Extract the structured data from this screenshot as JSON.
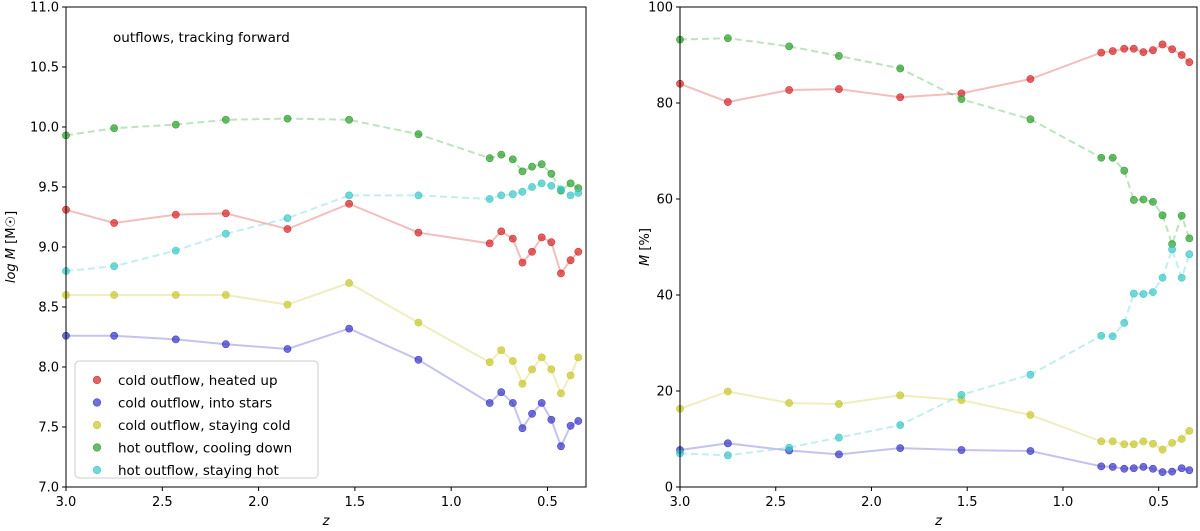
{
  "chart_data": [
    {
      "type": "line",
      "annotation": "outflows, tracking forward",
      "xlabel": "z",
      "ylabel_main": "log M",
      "ylabel_unit": "[M☉]",
      "xlim": [
        3.0,
        0.3
      ],
      "ylim": [
        7.0,
        11.0
      ],
      "xticks": [
        3.0,
        2.5,
        2.0,
        1.5,
        1.0,
        0.5
      ],
      "xtick_labels": [
        "3.0",
        "2.5",
        "2.0",
        "1.5",
        "1.0",
        "0.5"
      ],
      "yticks": [
        7.0,
        7.5,
        8.0,
        8.5,
        9.0,
        9.5,
        10.0,
        10.5,
        11.0
      ],
      "ytick_labels": [
        "7.0",
        "7.5",
        "8.0",
        "8.5",
        "9.0",
        "9.5",
        "10.0",
        "10.5",
        "11.0"
      ],
      "legend_position": "lower-left",
      "x": [
        3.0,
        2.75,
        2.43,
        2.17,
        1.85,
        1.53,
        1.17,
        0.8,
        0.74,
        0.68,
        0.63,
        0.58,
        0.53,
        0.48,
        0.43,
        0.38,
        0.34
      ],
      "series": [
        {
          "name": "cold outflow, heated up",
          "color": "#d62728",
          "dashed": false,
          "values": [
            9.31,
            9.2,
            9.27,
            9.28,
            9.15,
            9.36,
            9.12,
            9.03,
            9.13,
            9.07,
            8.87,
            8.96,
            9.08,
            9.04,
            8.78,
            8.89,
            8.96
          ]
        },
        {
          "name": "cold outflow, into stars",
          "color": "#3b38c7",
          "dashed": false,
          "values": [
            8.26,
            8.26,
            8.23,
            8.19,
            8.15,
            8.32,
            8.06,
            7.7,
            7.79,
            7.7,
            7.49,
            7.61,
            7.7,
            7.56,
            7.34,
            7.51,
            7.55
          ]
        },
        {
          "name": "cold outflow, staying cold",
          "color": "#c8c82e",
          "dashed": false,
          "values": [
            8.6,
            8.6,
            8.6,
            8.6,
            8.52,
            8.7,
            8.37,
            8.04,
            8.14,
            8.05,
            7.86,
            7.98,
            8.08,
            7.98,
            7.78,
            7.93,
            8.08
          ]
        },
        {
          "name": "hot outflow, cooling down",
          "color": "#2ca02c",
          "dashed": true,
          "values": [
            9.93,
            9.99,
            10.02,
            10.06,
            10.07,
            10.06,
            9.94,
            9.74,
            9.77,
            9.73,
            9.63,
            9.67,
            9.69,
            9.61,
            9.47,
            9.53,
            9.49
          ]
        },
        {
          "name": "hot outflow, staying hot",
          "color": "#3cc8c8",
          "dashed": true,
          "values": [
            8.8,
            8.84,
            8.97,
            9.11,
            9.24,
            9.43,
            9.43,
            9.4,
            9.43,
            9.44,
            9.46,
            9.5,
            9.53,
            9.51,
            9.48,
            9.43,
            9.45
          ]
        }
      ]
    },
    {
      "type": "line",
      "xlabel": "z",
      "ylabel_main": "M",
      "ylabel_unit": "[%]",
      "xlim": [
        3.0,
        0.3
      ],
      "ylim": [
        0,
        100
      ],
      "xticks": [
        3.0,
        2.5,
        2.0,
        1.5,
        1.0,
        0.5
      ],
      "xtick_labels": [
        "3.0",
        "2.5",
        "2.0",
        "1.5",
        "1.0",
        "0.5"
      ],
      "yticks": [
        0,
        20,
        40,
        60,
        80,
        100
      ],
      "ytick_labels": [
        "0",
        "20",
        "40",
        "60",
        "80",
        "100"
      ],
      "x": [
        3.0,
        2.75,
        2.43,
        2.17,
        1.85,
        1.53,
        1.17,
        0.8,
        0.74,
        0.68,
        0.63,
        0.58,
        0.53,
        0.48,
        0.43,
        0.38,
        0.34
      ],
      "series": [
        {
          "name": "cold outflow, heated up",
          "color": "#d62728",
          "dashed": false,
          "values": [
            84,
            80.2,
            82.7,
            82.9,
            81.2,
            82,
            85,
            90.5,
            90.8,
            91.3,
            91.3,
            90.6,
            91,
            92.2,
            91.2,
            90,
            88.5
          ]
        },
        {
          "name": "cold outflow, into stars",
          "color": "#3b38c7",
          "dashed": false,
          "values": [
            7.7,
            9.1,
            7.6,
            6.8,
            8.1,
            7.7,
            7.5,
            4.3,
            4.2,
            3.8,
            3.9,
            4.2,
            3.8,
            3.1,
            3.2,
            3.9,
            3.5
          ]
        },
        {
          "name": "cold outflow, staying cold",
          "color": "#c8c82e",
          "dashed": false,
          "values": [
            16.3,
            19.9,
            17.5,
            17.3,
            19.1,
            18.1,
            15,
            9.5,
            9.5,
            8.9,
            8.9,
            9.5,
            9,
            7.8,
            9.2,
            10,
            11.7
          ]
        },
        {
          "name": "hot outflow, cooling down",
          "color": "#2ca02c",
          "dashed": true,
          "values": [
            93.2,
            93.5,
            91.8,
            89.8,
            87.2,
            80.8,
            76.6,
            68.6,
            68.6,
            65.9,
            59.8,
            59.9,
            59.4,
            56.6,
            50.6,
            56.5,
            51.8
          ]
        },
        {
          "name": "hot outflow, staying hot",
          "color": "#3cc8c8",
          "dashed": true,
          "values": [
            7,
            6.6,
            8.2,
            10.3,
            12.9,
            19.2,
            23.4,
            31.5,
            31.4,
            34.2,
            40.3,
            40.2,
            40.6,
            43.6,
            49.5,
            43.6,
            48.5
          ]
        }
      ]
    }
  ]
}
